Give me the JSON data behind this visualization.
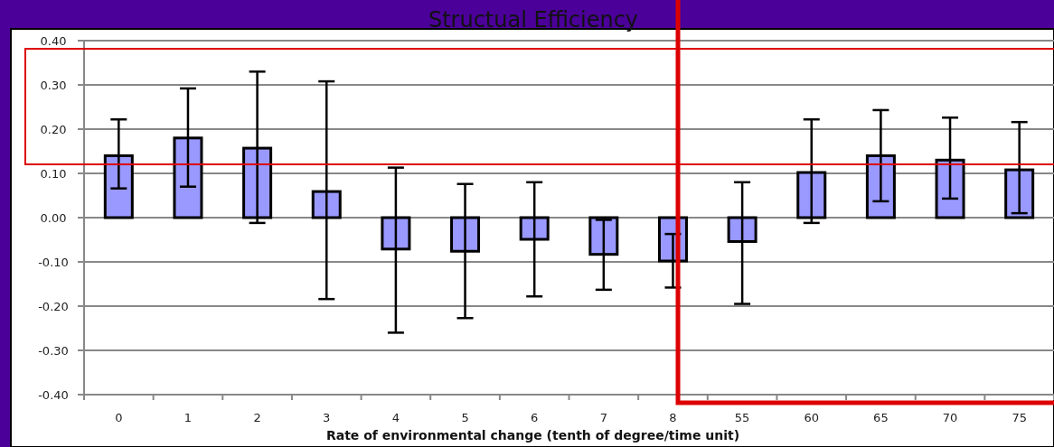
{
  "chart_data": {
    "type": "bar",
    "title": "Structual Efficiency",
    "xlabel": "Rate of environmental change (tenth of degree/time unit)",
    "categories": [
      "0",
      "1",
      "2",
      "3",
      "4",
      "5",
      "6",
      "7",
      "8",
      "55",
      "60",
      "65",
      "70",
      "75"
    ],
    "values": [
      0.14,
      0.18,
      0.157,
      0.059,
      -0.071,
      -0.076,
      -0.049,
      -0.083,
      -0.098,
      -0.054,
      0.102,
      0.14,
      0.13,
      0.108
    ],
    "errors": [
      [
        0.066,
        0.222
      ],
      [
        0.07,
        0.292
      ],
      [
        -0.012,
        0.33
      ],
      [
        -0.184,
        0.308
      ],
      [
        -0.26,
        0.113
      ],
      [
        -0.227,
        0.076
      ],
      [
        -0.178,
        0.08
      ],
      [
        -0.163,
        -0.005
      ],
      [
        -0.158,
        -0.037
      ],
      [
        -0.195,
        0.08
      ],
      [
        -0.012,
        0.222
      ],
      [
        0.037,
        0.243
      ],
      [
        0.043,
        0.226
      ],
      [
        0.01,
        0.216
      ]
    ],
    "color": "#9999ff",
    "ylim": [
      -0.4,
      0.4
    ],
    "yticks": [
      {
        "value": -0.4,
        "label": "-0.40"
      },
      {
        "value": -0.3,
        "label": "-0.30"
      },
      {
        "value": -0.2,
        "label": "-0.20"
      },
      {
        "value": -0.1,
        "label": "-0.10"
      },
      {
        "value": 0,
        "label": "0.00"
      },
      {
        "value": 0.1,
        "label": "0.10"
      },
      {
        "value": 0.2,
        "label": "0.20"
      },
      {
        "value": 0.3,
        "label": "0.30"
      },
      {
        "value": 0.4,
        "label": "0.40"
      }
    ],
    "grid": "y"
  }
}
